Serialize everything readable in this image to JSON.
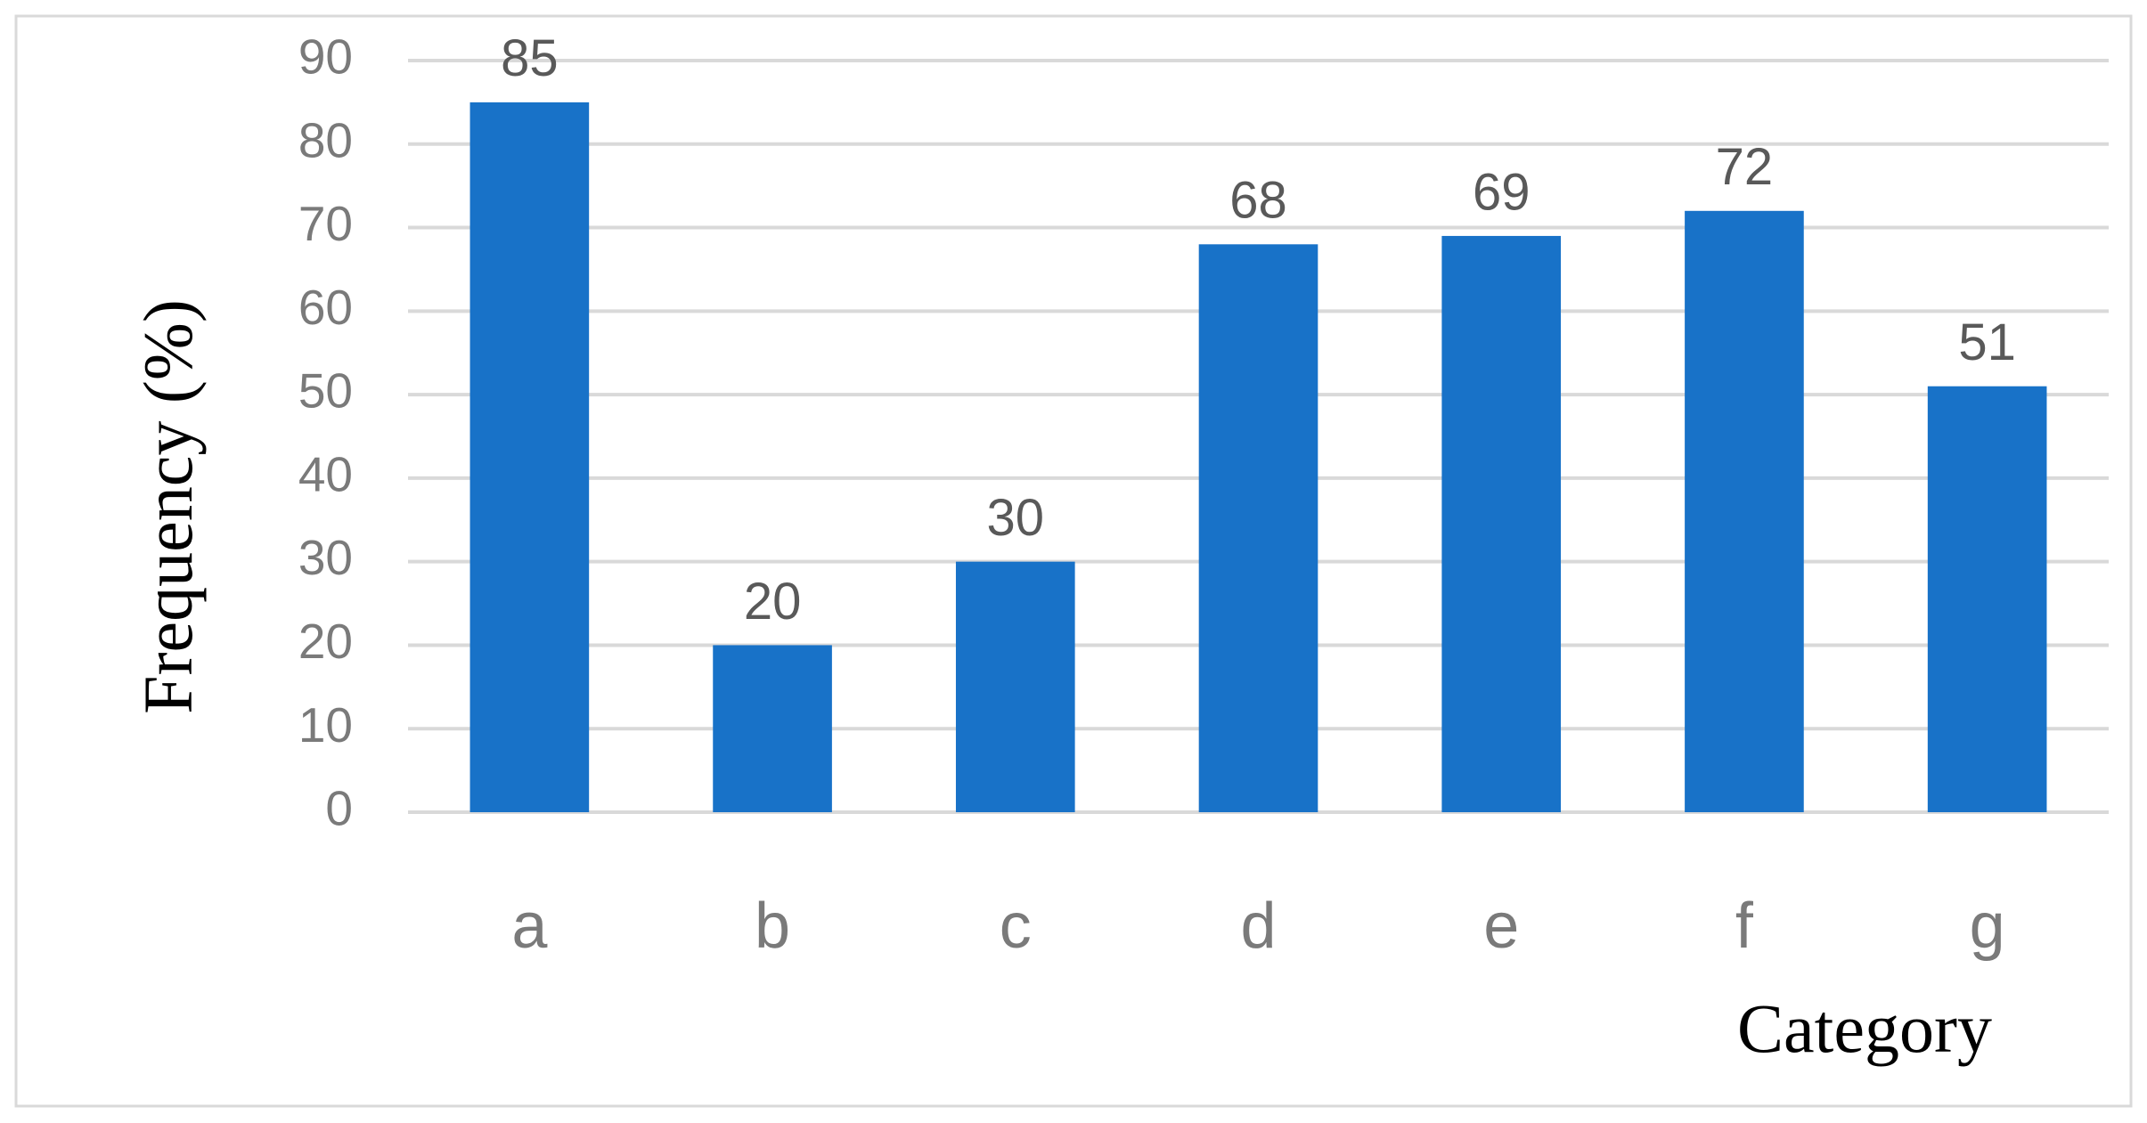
{
  "chart_data": {
    "type": "bar",
    "x_label": "Category",
    "y_label": "Frequency (%)",
    "categories": [
      "a",
      "b",
      "c",
      "d",
      "e",
      "f",
      "g"
    ],
    "values": [
      85,
      20,
      30,
      68,
      69,
      72,
      51
    ],
    "color": "#1872c8",
    "ylim": [
      0,
      90
    ],
    "yticks": [
      0,
      10,
      20,
      30,
      40,
      50,
      60,
      70,
      80,
      90
    ],
    "grid": true
  }
}
